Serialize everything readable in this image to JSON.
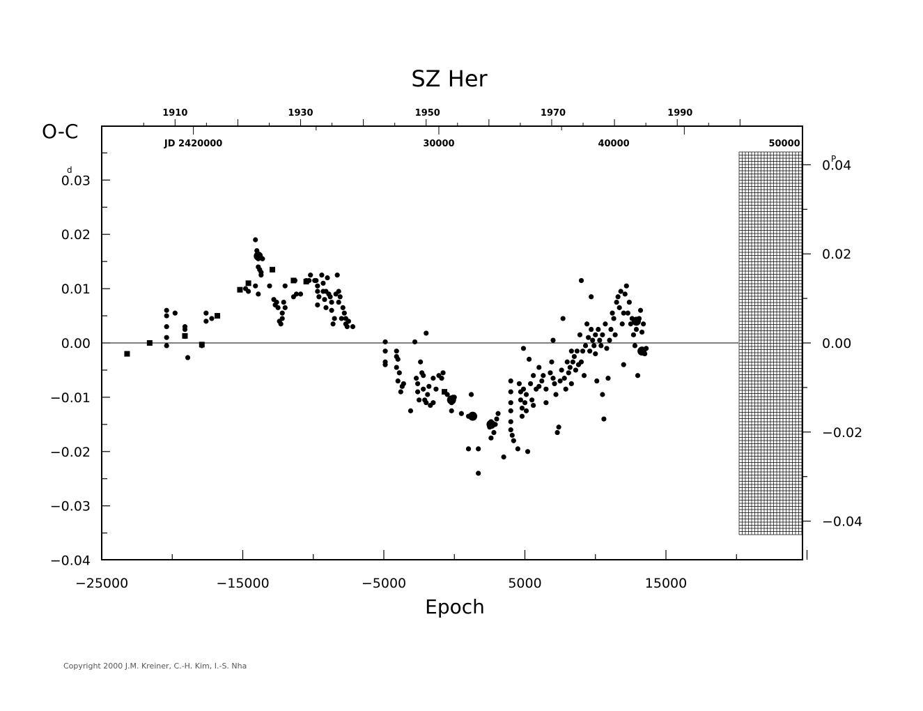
{
  "chart_data": {
    "type": "scatter",
    "title": "SZ Her",
    "xlabel": "Epoch",
    "ylabel": "O-C",
    "y_unit_left": "d",
    "y_unit_right": "P",
    "xlim": [
      -25000,
      25000
    ],
    "ylim": [
      -0.04,
      0.04
    ],
    "x_ticks": [
      "−25000",
      "−15000",
      "−5000",
      "5000",
      "15000"
    ],
    "x_tick_values": [
      -25000,
      -15000,
      -5000,
      5000,
      15000
    ],
    "y_ticks": [
      "0.03",
      "0.02",
      "0.01",
      "0.00",
      "−0.01",
      "−0.02",
      "−0.03",
      "−0.04"
    ],
    "y_tick_values": [
      0.03,
      0.02,
      0.01,
      0.0,
      -0.01,
      -0.02,
      -0.03,
      -0.04
    ],
    "right_ticks": [
      "0.04",
      "0.02",
      "0.00",
      "−0.02",
      "−0.04"
    ],
    "right_tick_values": [
      0.04,
      0.02,
      0.0,
      -0.02,
      -0.04
    ],
    "year_ticks": [
      "1910",
      "1930",
      "1950",
      "1970",
      "1990"
    ],
    "year_tick_epochs": [
      -19800,
      -10900,
      -1900,
      7000,
      16000
    ],
    "jd_ticks": [
      "JD  2420000",
      "30000",
      "40000",
      "50000"
    ],
    "jd_tick_epochs": [
      -18500,
      -1100,
      11300,
      23400
    ],
    "points": [
      [
        -23200,
        -0.002
      ],
      [
        -21600,
        0.0
      ],
      [
        -20400,
        0.006
      ],
      [
        -20400,
        0.005
      ],
      [
        -20400,
        0.003
      ],
      [
        -20400,
        0.001
      ],
      [
        -20400,
        -0.0005
      ],
      [
        -19800,
        0.0055
      ],
      [
        -19100,
        0.003
      ],
      [
        -19100,
        0.0025
      ],
      [
        -19100,
        0.0012
      ],
      [
        -18900,
        -0.0027
      ],
      [
        -17900,
        -0.0005
      ],
      [
        -17600,
        0.0055
      ],
      [
        -17600,
        0.004
      ],
      [
        -17200,
        0.0045
      ],
      [
        -16800,
        0.005
      ],
      [
        -14800,
        0.01
      ],
      [
        -14600,
        0.011
      ],
      [
        -14600,
        0.0095
      ],
      [
        -14100,
        0.019
      ],
      [
        -14000,
        0.017
      ],
      [
        -14000,
        0.016
      ],
      [
        -13900,
        0.0155
      ],
      [
        -13900,
        0.014
      ],
      [
        -13800,
        0.0135
      ],
      [
        -13700,
        0.013
      ],
      [
        -13700,
        0.0125
      ],
      [
        -13600,
        0.0155
      ],
      [
        -14100,
        0.0105
      ],
      [
        -13900,
        0.009
      ],
      [
        -13100,
        0.0105
      ],
      [
        -12900,
        0.0135
      ],
      [
        -12800,
        0.008
      ],
      [
        -12700,
        0.007
      ],
      [
        -12600,
        0.0075
      ],
      [
        -12500,
        0.0065
      ],
      [
        -12400,
        0.004
      ],
      [
        -12300,
        0.0035
      ],
      [
        -12200,
        0.0055
      ],
      [
        -12100,
        0.0075
      ],
      [
        -12000,
        0.0065
      ],
      [
        -12000,
        0.0105
      ],
      [
        -12200,
        0.0045
      ],
      [
        -11400,
        0.0085
      ],
      [
        -11300,
        0.0115
      ],
      [
        -11200,
        0.009
      ],
      [
        -10900,
        0.009
      ],
      [
        -10500,
        0.0115
      ],
      [
        -10300,
        0.0115
      ],
      [
        -10200,
        0.0125
      ],
      [
        -9900,
        0.0115
      ],
      [
        -9800,
        0.0115
      ],
      [
        -9700,
        0.0105
      ],
      [
        -9700,
        0.0095
      ],
      [
        -9600,
        0.0085
      ],
      [
        -9700,
        0.007
      ],
      [
        -9400,
        0.0125
      ],
      [
        -9300,
        0.011
      ],
      [
        -9300,
        0.0095
      ],
      [
        -9200,
        0.008
      ],
      [
        -9100,
        0.0065
      ],
      [
        -9100,
        0.0095
      ],
      [
        -9000,
        0.012
      ],
      [
        -8900,
        0.009
      ],
      [
        -8800,
        0.0085
      ],
      [
        -8700,
        0.0075
      ],
      [
        -8700,
        0.006
      ],
      [
        -8600,
        0.0035
      ],
      [
        -8500,
        0.0045
      ],
      [
        -8400,
        0.009
      ],
      [
        -8300,
        0.0125
      ],
      [
        -8200,
        0.0095
      ],
      [
        -8200,
        0.0075
      ],
      [
        -8100,
        0.0085
      ],
      [
        -8000,
        0.0045
      ],
      [
        -7900,
        0.0065
      ],
      [
        -7800,
        0.0055
      ],
      [
        -7700,
        0.0045
      ],
      [
        -7700,
        0.0035
      ],
      [
        -7600,
        0.003
      ],
      [
        -7500,
        0.004
      ],
      [
        -7200,
        0.003
      ],
      [
        -4900,
        0.0002
      ],
      [
        -4900,
        -0.0015
      ],
      [
        -4900,
        -0.0035
      ],
      [
        -4900,
        -0.004
      ],
      [
        -4100,
        -0.0015
      ],
      [
        -4100,
        -0.0025
      ],
      [
        -4000,
        -0.003
      ],
      [
        -4100,
        -0.0045
      ],
      [
        -3900,
        -0.0055
      ],
      [
        -4000,
        -0.007
      ],
      [
        -3800,
        -0.009
      ],
      [
        -3700,
        -0.008
      ],
      [
        -3600,
        -0.0075
      ],
      [
        -3100,
        -0.0125
      ],
      [
        -2800,
        0.0002
      ],
      [
        -2700,
        -0.0065
      ],
      [
        -2600,
        -0.0075
      ],
      [
        -2600,
        -0.009
      ],
      [
        -2500,
        -0.0105
      ],
      [
        -2400,
        -0.0035
      ],
      [
        -2300,
        -0.0055
      ],
      [
        -2200,
        -0.006
      ],
      [
        -2200,
        -0.0085
      ],
      [
        -2100,
        -0.0105
      ],
      [
        -2000,
        -0.011
      ],
      [
        -2000,
        0.0018
      ],
      [
        -1900,
        -0.0095
      ],
      [
        -1800,
        -0.008
      ],
      [
        -1700,
        -0.0115
      ],
      [
        -1500,
        -0.011
      ],
      [
        -1500,
        -0.0065
      ],
      [
        -1300,
        -0.0085
      ],
      [
        -1100,
        -0.006
      ],
      [
        -900,
        -0.0065
      ],
      [
        -800,
        -0.0055
      ],
      [
        -500,
        -0.0095
      ],
      [
        -300,
        -0.0105
      ],
      [
        -200,
        -0.011
      ],
      [
        -100,
        -0.01
      ],
      [
        0,
        -0.01
      ],
      [
        -200,
        -0.0125
      ],
      [
        500,
        -0.013
      ],
      [
        1000,
        -0.0135
      ],
      [
        1200,
        -0.0095
      ],
      [
        1000,
        -0.0195
      ],
      [
        1700,
        -0.0195
      ],
      [
        1700,
        -0.024
      ],
      [
        2500,
        -0.0155
      ],
      [
        2600,
        -0.0145
      ],
      [
        2600,
        -0.0175
      ],
      [
        2800,
        -0.0165
      ],
      [
        2900,
        -0.015
      ],
      [
        3000,
        -0.014
      ],
      [
        3100,
        -0.013
      ],
      [
        3500,
        -0.021
      ],
      [
        4000,
        -0.007
      ],
      [
        4000,
        -0.009
      ],
      [
        4000,
        -0.011
      ],
      [
        4000,
        -0.0125
      ],
      [
        4000,
        -0.0145
      ],
      [
        4000,
        -0.016
      ],
      [
        4100,
        -0.017
      ],
      [
        4200,
        -0.018
      ],
      [
        4500,
        -0.0195
      ],
      [
        4600,
        -0.0075
      ],
      [
        4700,
        -0.009
      ],
      [
        4700,
        -0.0105
      ],
      [
        4800,
        -0.012
      ],
      [
        4800,
        -0.0135
      ],
      [
        4900,
        -0.0085
      ],
      [
        4900,
        -0.001
      ],
      [
        5000,
        -0.011
      ],
      [
        5100,
        -0.0095
      ],
      [
        5100,
        -0.0125
      ],
      [
        5200,
        -0.02
      ],
      [
        5300,
        -0.003
      ],
      [
        5400,
        -0.0075
      ],
      [
        5500,
        -0.0105
      ],
      [
        5600,
        -0.006
      ],
      [
        5600,
        -0.0115
      ],
      [
        5800,
        -0.0085
      ],
      [
        6000,
        -0.0045
      ],
      [
        6000,
        -0.008
      ],
      [
        6200,
        -0.007
      ],
      [
        6300,
        -0.006
      ],
      [
        6500,
        -0.0085
      ],
      [
        6500,
        -0.011
      ],
      [
        6800,
        -0.0055
      ],
      [
        6900,
        -0.0035
      ],
      [
        7000,
        0.0005
      ],
      [
        7000,
        -0.0065
      ],
      [
        7100,
        -0.0075
      ],
      [
        7200,
        -0.0095
      ],
      [
        7300,
        -0.0165
      ],
      [
        7400,
        -0.0155
      ],
      [
        7500,
        -0.007
      ],
      [
        7600,
        -0.005
      ],
      [
        7700,
        0.0045
      ],
      [
        7800,
        -0.0065
      ],
      [
        7900,
        -0.0085
      ],
      [
        8000,
        -0.0035
      ],
      [
        8100,
        -0.0055
      ],
      [
        8200,
        -0.0045
      ],
      [
        8300,
        -0.0075
      ],
      [
        8300,
        -0.0015
      ],
      [
        8400,
        -0.0035
      ],
      [
        8500,
        -0.0025
      ],
      [
        8600,
        -0.005
      ],
      [
        8700,
        -0.0015
      ],
      [
        8800,
        -0.004
      ],
      [
        8900,
        0.0015
      ],
      [
        9000,
        0.0115
      ],
      [
        9000,
        -0.0035
      ],
      [
        9100,
        -0.0015
      ],
      [
        9200,
        -0.006
      ],
      [
        9300,
        -0.0005
      ],
      [
        9400,
        0.0035
      ],
      [
        9500,
        0.001
      ],
      [
        9600,
        -0.0015
      ],
      [
        9700,
        0.0085
      ],
      [
        9700,
        0.0025
      ],
      [
        9800,
        0.0005
      ],
      [
        9900,
        -0.0005
      ],
      [
        10000,
        0.0015
      ],
      [
        10000,
        -0.002
      ],
      [
        10100,
        -0.007
      ],
      [
        10200,
        0.0025
      ],
      [
        10300,
        0.0005
      ],
      [
        10400,
        -0.0005
      ],
      [
        10500,
        0.0015
      ],
      [
        10500,
        -0.0095
      ],
      [
        10600,
        -0.014
      ],
      [
        10700,
        0.0035
      ],
      [
        10800,
        -0.001
      ],
      [
        10900,
        -0.0065
      ],
      [
        11000,
        0.0005
      ],
      [
        11100,
        0.0025
      ],
      [
        11200,
        0.0055
      ],
      [
        11300,
        0.0045
      ],
      [
        11400,
        0.0015
      ],
      [
        11500,
        0.0075
      ],
      [
        11600,
        0.0085
      ],
      [
        11700,
        0.0065
      ],
      [
        11800,
        0.0095
      ],
      [
        11900,
        0.0035
      ],
      [
        12000,
        0.0055
      ],
      [
        12000,
        -0.004
      ],
      [
        12100,
        0.009
      ],
      [
        12200,
        0.0105
      ],
      [
        12300,
        0.0055
      ],
      [
        12400,
        0.0075
      ],
      [
        12500,
        0.0035
      ],
      [
        12600,
        0.0045
      ],
      [
        12700,
        0.0015
      ],
      [
        12800,
        -0.0005
      ],
      [
        12900,
        0.0025
      ],
      [
        13000,
        -0.006
      ],
      [
        13100,
        0.0045
      ],
      [
        13200,
        0.006
      ],
      [
        13300,
        0.002
      ],
      [
        13400,
        0.0035
      ],
      [
        13500,
        -0.002
      ],
      [
        13600,
        -0.001
      ]
    ],
    "large_points": [
      [
        -13900,
        0.016
      ],
      [
        -200,
        -0.0105
      ],
      [
        1300,
        -0.0135
      ],
      [
        2600,
        -0.015
      ],
      [
        13300,
        -0.0015
      ],
      [
        12900,
        0.004
      ]
    ],
    "square_points": [
      [
        -23200,
        -0.002
      ],
      [
        -21600,
        0.0
      ],
      [
        -19100,
        0.0013
      ],
      [
        -17900,
        -0.0003
      ],
      [
        -16800,
        0.005
      ],
      [
        -15200,
        0.0098
      ],
      [
        -14600,
        0.011
      ],
      [
        -12900,
        0.0135
      ],
      [
        -11400,
        0.0115
      ],
      [
        -10500,
        0.0113
      ],
      [
        -700,
        -0.009
      ]
    ],
    "grid": false
  },
  "copyright": "Copyright 2000 J.M. Kreiner, C.-H. Kim, I.-S. Nha"
}
